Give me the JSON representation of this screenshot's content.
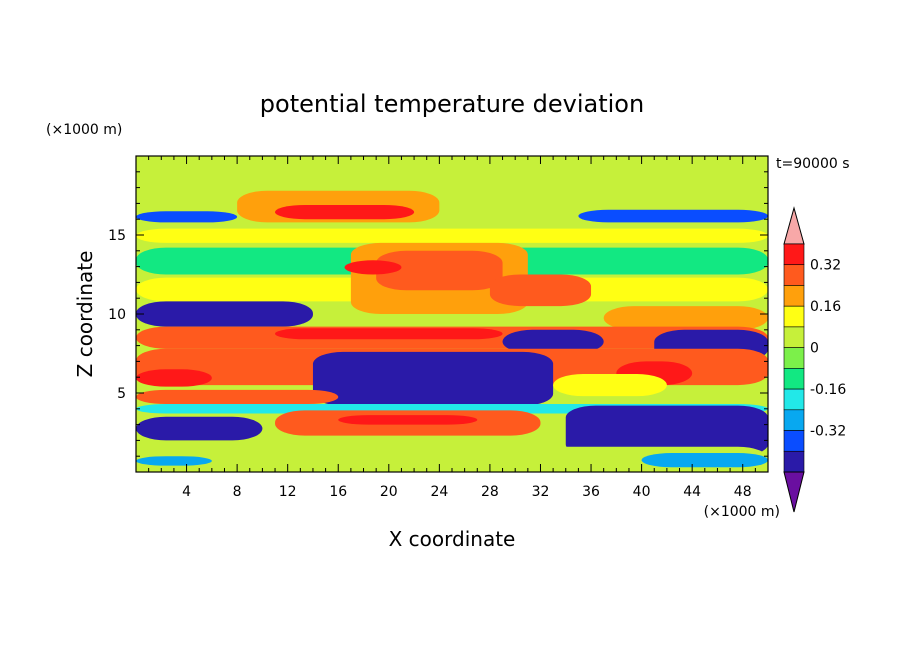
{
  "chart_data": {
    "type": "heatmap",
    "title": "potential temperature deviation",
    "xlabel": "X coordinate",
    "ylabel": "Z coordinate",
    "x_units": "(×1000 m)",
    "y_units": "(×1000 m)",
    "time_label": "t=90000 s",
    "xlim": [
      0,
      50
    ],
    "ylim": [
      0,
      20
    ],
    "x_ticks": [
      4,
      8,
      12,
      16,
      20,
      24,
      28,
      32,
      36,
      40,
      44,
      48
    ],
    "y_ticks": [
      5,
      10,
      15
    ],
    "colorbar": {
      "levels": [
        -0.48,
        -0.4,
        -0.32,
        -0.24,
        -0.16,
        -0.08,
        0,
        0.08,
        0.16,
        0.24,
        0.32,
        0.4
      ],
      "tick_values": [
        -0.32,
        -0.16,
        0,
        0.16,
        0.32
      ],
      "tick_labels": [
        "-0.32",
        "-0.16",
        "0",
        "0.16",
        "0.32"
      ],
      "colors": [
        "#6A0FA0",
        "#2A1AA8",
        "#0A4DFF",
        "#08A8F0",
        "#22E8E8",
        "#12E882",
        "#7CF04A",
        "#C6F03A",
        "#FFFF14",
        "#FFA00C",
        "#FF5A1E",
        "#FF1818",
        "#F8A8A8"
      ],
      "extend": "both"
    },
    "regions": [
      {
        "x": [
          0,
          50
        ],
        "z": [
          0,
          20
        ],
        "value": 0.0
      },
      {
        "x": [
          0,
          10
        ],
        "z": [
          17,
          20
        ],
        "value": 0.04
      },
      {
        "x": [
          30,
          50
        ],
        "z": [
          17.5,
          20
        ],
        "value": 0.04
      },
      {
        "x": [
          8,
          24
        ],
        "z": [
          15.8,
          17.8
        ],
        "value": 0.2
      },
      {
        "x": [
          11,
          22
        ],
        "z": [
          16,
          16.9
        ],
        "value": 0.36
      },
      {
        "x": [
          0,
          8
        ],
        "z": [
          15.8,
          16.5
        ],
        "value": -0.4
      },
      {
        "x": [
          35,
          50
        ],
        "z": [
          15.8,
          16.6
        ],
        "value": -0.4
      },
      {
        "x": [
          0,
          50
        ],
        "z": [
          14.5,
          15.4
        ],
        "value": 0.08
      },
      {
        "x": [
          0,
          50
        ],
        "z": [
          12.5,
          14.2
        ],
        "value": -0.1
      },
      {
        "x": [
          0,
          50
        ],
        "z": [
          10.8,
          12.3
        ],
        "value": 0.12
      },
      {
        "x": [
          17,
          31
        ],
        "z": [
          10,
          14.5
        ],
        "value": 0.2
      },
      {
        "x": [
          19,
          29
        ],
        "z": [
          11.5,
          14
        ],
        "value": 0.28
      },
      {
        "x": [
          16.5,
          21
        ],
        "z": [
          12.5,
          13.4
        ],
        "value": 0.36
      },
      {
        "x": [
          28,
          36
        ],
        "z": [
          10.5,
          12.5
        ],
        "value": 0.24
      },
      {
        "x": [
          0,
          14
        ],
        "z": [
          9.2,
          10.8
        ],
        "value": -0.44
      },
      {
        "x": [
          37,
          50
        ],
        "z": [
          9,
          10.5
        ],
        "value": 0.2
      },
      {
        "x": [
          0,
          50
        ],
        "z": [
          7.8,
          9.2
        ],
        "value": 0.28
      },
      {
        "x": [
          11,
          29
        ],
        "z": [
          8.4,
          9.1
        ],
        "value": 0.36
      },
      {
        "x": [
          29,
          37
        ],
        "z": [
          7.5,
          9
        ],
        "value": -0.44
      },
      {
        "x": [
          41,
          50
        ],
        "z": [
          7,
          9
        ],
        "value": -0.44
      },
      {
        "x": [
          0,
          50
        ],
        "z": [
          5.5,
          7.8
        ],
        "value": 0.3
      },
      {
        "x": [
          0,
          6
        ],
        "z": [
          5.4,
          6.5
        ],
        "value": 0.38
      },
      {
        "x": [
          14,
          33
        ],
        "z": [
          4.2,
          7.6
        ],
        "value": -0.46
      },
      {
        "x": [
          38,
          44
        ],
        "z": [
          5.5,
          7
        ],
        "value": 0.36
      },
      {
        "x": [
          33,
          42
        ],
        "z": [
          4.8,
          6.2
        ],
        "value": 0.12
      },
      {
        "x": [
          0,
          50
        ],
        "z": [
          3.7,
          4.3
        ],
        "value": -0.2
      },
      {
        "x": [
          0,
          16
        ],
        "z": [
          4.3,
          5.2
        ],
        "value": 0.24
      },
      {
        "x": [
          11,
          32
        ],
        "z": [
          2.3,
          3.9
        ],
        "value": 0.24
      },
      {
        "x": [
          16,
          27
        ],
        "z": [
          3,
          3.6
        ],
        "value": 0.36
      },
      {
        "x": [
          0,
          10
        ],
        "z": [
          2,
          3.5
        ],
        "value": -0.44
      },
      {
        "x": [
          34,
          50
        ],
        "z": [
          1,
          4.2
        ],
        "value": -0.44
      },
      {
        "x": [
          0,
          50
        ],
        "z": [
          0,
          1.6
        ],
        "value": 0.06
      },
      {
        "x": [
          0,
          6
        ],
        "z": [
          0.4,
          1
        ],
        "value": -0.3
      },
      {
        "x": [
          40,
          50
        ],
        "z": [
          0.3,
          1.2
        ],
        "value": -0.3
      }
    ]
  }
}
